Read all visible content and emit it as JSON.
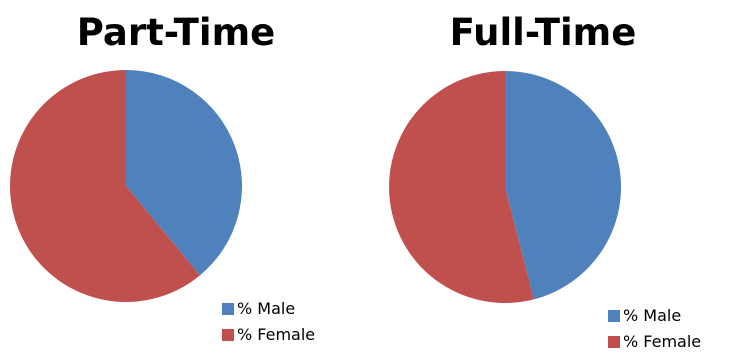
{
  "chart_data": [
    {
      "type": "pie",
      "title": "Part-Time",
      "categories": [
        "% Male",
        "% Female"
      ],
      "values": [
        39,
        61
      ],
      "colors": [
        "#4F81BD",
        "#C0504D"
      ],
      "legend_position": "bottom-right"
    },
    {
      "type": "pie",
      "title": "Full-Time",
      "categories": [
        "% Male",
        "% Female"
      ],
      "values": [
        46,
        54
      ],
      "colors": [
        "#4F81BD",
        "#C0504D"
      ],
      "legend_position": "bottom-right"
    }
  ]
}
